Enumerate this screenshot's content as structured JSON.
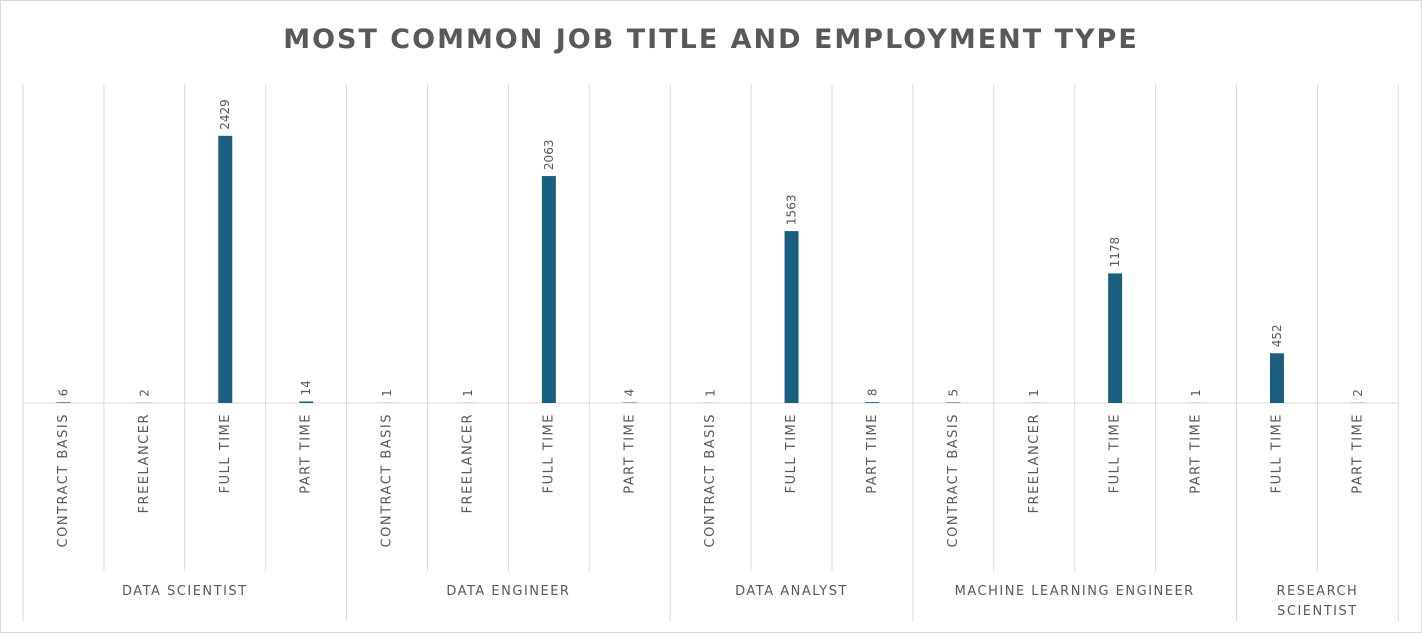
{
  "chart_data": {
    "type": "bar",
    "title": "MOST COMMON JOB TITLE AND EMPLOYMENT TYPE",
    "xlabel": "",
    "ylabel": "",
    "ylim": [
      0,
      2900
    ],
    "grid": true,
    "legend": "none",
    "colors": {
      "bar": "#1b5f80",
      "text": "#595959",
      "grid": "#d9d9d9"
    },
    "groups": [
      {
        "name": "DATA SCIENTIST",
        "categories": [
          "CONTRACT BASIS",
          "FREELANCER",
          "FULL TIME",
          "PART TIME"
        ],
        "values": [
          6,
          2,
          2429,
          14
        ]
      },
      {
        "name": "DATA ENGINEER",
        "categories": [
          "CONTRACT BASIS",
          "FREELANCER",
          "FULL TIME",
          "PART TIME"
        ],
        "values": [
          1,
          1,
          2063,
          4
        ]
      },
      {
        "name": "DATA ANALYST",
        "categories": [
          "CONTRACT BASIS",
          "FULL TIME",
          "PART TIME"
        ],
        "values": [
          1,
          1563,
          8
        ]
      },
      {
        "name": "MACHINE LEARNING ENGINEER",
        "categories": [
          "CONTRACT BASIS",
          "FREELANCER",
          "FULL TIME",
          "PART TIME"
        ],
        "values": [
          5,
          1,
          1178,
          1
        ]
      },
      {
        "name": "RESEARCH SCIENTIST",
        "name_lines": [
          "RESEARCH",
          "SCIENTIST"
        ],
        "categories": [
          "FULL TIME",
          "PART TIME"
        ],
        "values": [
          452,
          2
        ]
      }
    ]
  }
}
